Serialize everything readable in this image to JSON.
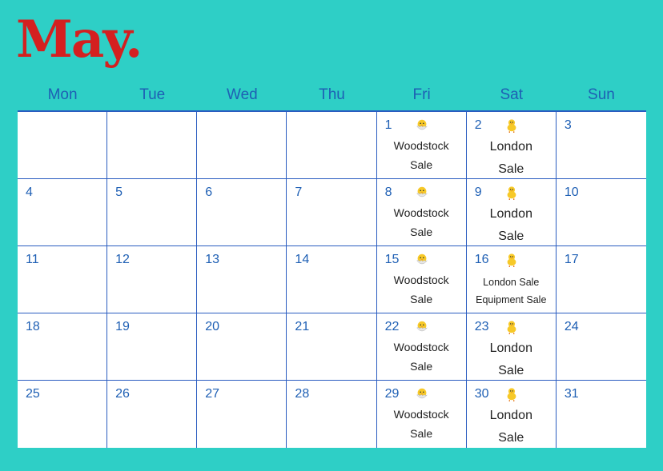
{
  "title": "May.",
  "weekdays": [
    "Mon",
    "Tue",
    "Wed",
    "Thu",
    "Fri",
    "Sat",
    "Sun"
  ],
  "colors": {
    "background": "#2ecfc6",
    "title": "#d42020",
    "accent": "#1e5fb4"
  },
  "weeks": [
    [
      {
        "day": ""
      },
      {
        "day": ""
      },
      {
        "day": ""
      },
      {
        "day": ""
      },
      {
        "day": "1",
        "icon": "hatching-chick",
        "events": [
          "Woodstock",
          "Sale"
        ]
      },
      {
        "day": "2",
        "icon": "baby-chick",
        "events": [
          "London",
          "Sale"
        ]
      },
      {
        "day": "3"
      }
    ],
    [
      {
        "day": "4"
      },
      {
        "day": "5"
      },
      {
        "day": "6"
      },
      {
        "day": "7"
      },
      {
        "day": "8",
        "icon": "hatching-chick",
        "events": [
          "Woodstock",
          "Sale"
        ]
      },
      {
        "day": "9",
        "icon": "baby-chick",
        "events": [
          "London",
          "Sale"
        ]
      },
      {
        "day": "10"
      }
    ],
    [
      {
        "day": "11"
      },
      {
        "day": "12"
      },
      {
        "day": "13"
      },
      {
        "day": "14"
      },
      {
        "day": "15",
        "icon": "hatching-chick",
        "events": [
          "Woodstock",
          "Sale"
        ]
      },
      {
        "day": "16",
        "icon": "baby-chick",
        "events": [
          "London Sale",
          "Equipment Sale"
        ]
      },
      {
        "day": "17"
      }
    ],
    [
      {
        "day": "18"
      },
      {
        "day": "19"
      },
      {
        "day": "20"
      },
      {
        "day": "21"
      },
      {
        "day": "22",
        "icon": "hatching-chick",
        "events": [
          "Woodstock",
          "Sale"
        ]
      },
      {
        "day": "23",
        "icon": "baby-chick",
        "events": [
          "London",
          "Sale"
        ]
      },
      {
        "day": "24"
      }
    ],
    [
      {
        "day": "25"
      },
      {
        "day": "26"
      },
      {
        "day": "27"
      },
      {
        "day": "28"
      },
      {
        "day": "29",
        "icon": "hatching-chick",
        "events": [
          "Woodstock",
          "Sale"
        ]
      },
      {
        "day": "30",
        "icon": "baby-chick",
        "events": [
          "London",
          "Sale"
        ]
      },
      {
        "day": "31"
      }
    ]
  ]
}
